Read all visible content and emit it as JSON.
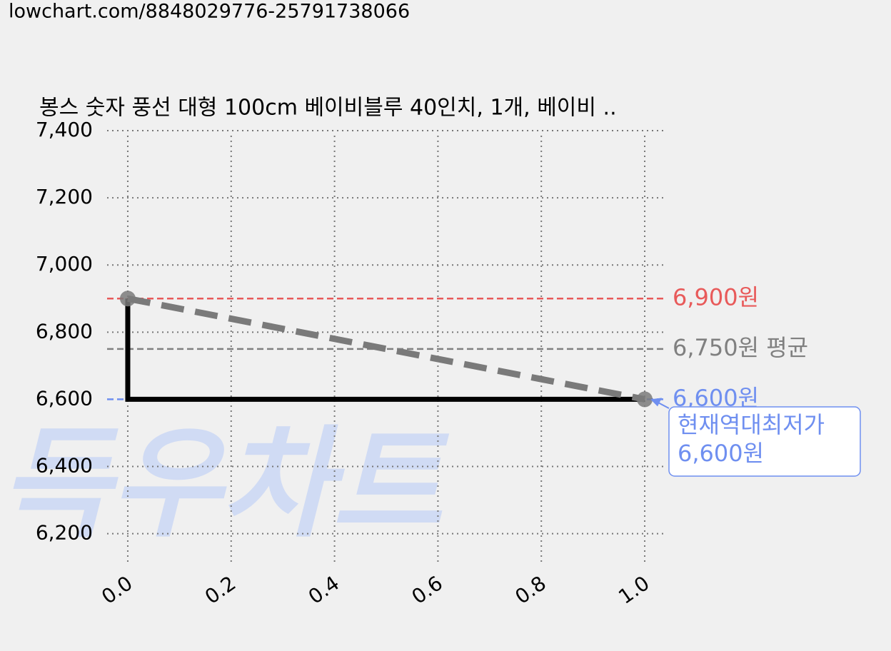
{
  "url": "lowchart.com/8848029776-25791738066",
  "watermark": "득우차트",
  "chart_data": {
    "type": "line",
    "title": "봉스 숫자 풍선 대형 100cm 베이비블루 40인치, 1개, 베이비 ..",
    "xlim": [
      -0.04,
      1.04
    ],
    "ylim": [
      6110,
      7400
    ],
    "xticks": [
      {
        "value": 0,
        "label": "0.0"
      },
      {
        "value": 0.2,
        "label": "0.2"
      },
      {
        "value": 0.4,
        "label": "0.4"
      },
      {
        "value": 0.6,
        "label": "0.6"
      },
      {
        "value": 0.8,
        "label": "0.8"
      },
      {
        "value": 1,
        "label": "1.0"
      }
    ],
    "yticks": [
      {
        "value": 6200,
        "label": "6,200"
      },
      {
        "value": 6400,
        "label": "6,400"
      },
      {
        "value": 6600,
        "label": "6,600"
      },
      {
        "value": 6800,
        "label": "6,800"
      },
      {
        "value": 7000,
        "label": "7,000"
      },
      {
        "value": 7200,
        "label": "7,200"
      },
      {
        "value": 7400,
        "label": "7,400"
      }
    ],
    "grid": true,
    "series": [
      {
        "color": "#000000",
        "x": [
          0,
          0,
          1
        ],
        "values": [
          6900,
          6600,
          6600
        ]
      },
      {
        "color": "#7a7a7a",
        "dashed": true,
        "markers": true,
        "x": [
          0,
          1
        ],
        "values": [
          6900,
          6600
        ]
      }
    ],
    "reference_lines": [
      {
        "value": 6900,
        "label": "6,900원",
        "color": "#e85a5a"
      },
      {
        "value": 6750,
        "label": "6,750원 평균",
        "color": "#808080"
      },
      {
        "value": 6600,
        "label": "6,600원",
        "color": "#6f8ff0"
      }
    ],
    "annotation": {
      "lines": [
        "현재역대최저가",
        "6,600원"
      ],
      "x": 1,
      "y": 6600,
      "color": "#6f8ff0"
    }
  }
}
